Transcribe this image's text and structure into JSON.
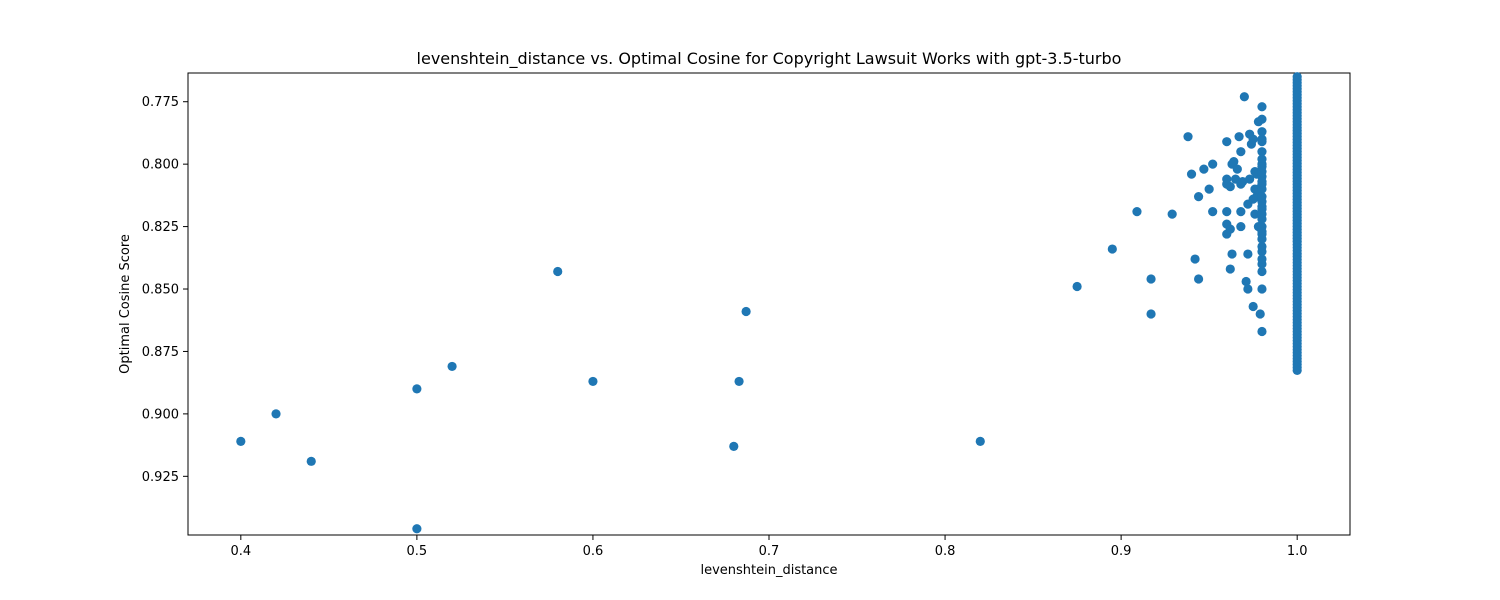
{
  "chart_data": {
    "type": "scatter",
    "title": "levenshtein_distance vs. Optimal Cosine for Copyright Lawsuit Works with gpt-3.5-turbo",
    "xlabel": "levenshtein_distance",
    "ylabel": "Optimal Cosine Score",
    "xlim": [
      0.37,
      1.03
    ],
    "ylim": [
      0.7635,
      0.9485
    ],
    "y_inverted": true,
    "xticks": [
      0.4,
      0.5,
      0.6,
      0.7,
      0.8,
      0.9,
      1.0
    ],
    "xtick_labels": [
      "0.4",
      "0.5",
      "0.6",
      "0.7",
      "0.8",
      "0.9",
      "1.0"
    ],
    "yticks": [
      0.775,
      0.8,
      0.825,
      0.85,
      0.875,
      0.9,
      0.925
    ],
    "ytick_labels": [
      "0.775",
      "0.800",
      "0.825",
      "0.850",
      "0.875",
      "0.900",
      "0.925"
    ],
    "grid": false,
    "marker_color": "#1f77b4",
    "series": [
      {
        "x": [
          0.4,
          0.42,
          0.44,
          0.5,
          0.5,
          0.52,
          0.58,
          0.6,
          0.68,
          0.683,
          0.687,
          0.82,
          0.875,
          0.895,
          0.909,
          0.917,
          0.917,
          0.929,
          0.938,
          0.94,
          0.942,
          0.944,
          0.944,
          0.947,
          0.95,
          0.952,
          0.952,
          0.96,
          0.96,
          0.96,
          0.96,
          0.96,
          0.96,
          0.962,
          0.962,
          0.962,
          0.963,
          0.963,
          0.964,
          0.965,
          0.966,
          0.967,
          0.968,
          0.968,
          0.968,
          0.968,
          0.969,
          0.97,
          0.971,
          0.972,
          0.972,
          0.972,
          0.973,
          0.973,
          0.974,
          0.975,
          0.975,
          0.975,
          0.976,
          0.976,
          0.976,
          0.977,
          0.977,
          0.978,
          0.978,
          0.978,
          0.979,
          0.98,
          0.98,
          0.98,
          0.98,
          0.98,
          0.98,
          0.98,
          0.98,
          0.98,
          0.98,
          0.98,
          0.98,
          0.98,
          0.98,
          0.98,
          0.98,
          0.98,
          0.98,
          0.98,
          0.98,
          0.98,
          0.98,
          0.98,
          0.98,
          0.98,
          0.98,
          0.98,
          0.98,
          0.98,
          0.98,
          0.98
        ],
        "y": [
          0.911,
          0.9,
          0.919,
          0.946,
          0.89,
          0.881,
          0.843,
          0.887,
          0.913,
          0.887,
          0.859,
          0.911,
          0.849,
          0.834,
          0.819,
          0.846,
          0.86,
          0.82,
          0.789,
          0.804,
          0.838,
          0.846,
          0.813,
          0.802,
          0.81,
          0.8,
          0.819,
          0.791,
          0.806,
          0.808,
          0.819,
          0.824,
          0.828,
          0.809,
          0.826,
          0.842,
          0.8,
          0.836,
          0.799,
          0.806,
          0.802,
          0.789,
          0.795,
          0.808,
          0.819,
          0.825,
          0.807,
          0.773,
          0.847,
          0.85,
          0.836,
          0.816,
          0.788,
          0.806,
          0.792,
          0.857,
          0.79,
          0.814,
          0.803,
          0.81,
          0.82,
          0.804,
          0.813,
          0.783,
          0.825,
          0.81,
          0.86,
          0.777,
          0.782,
          0.79,
          0.795,
          0.8,
          0.805,
          0.81,
          0.815,
          0.82,
          0.825,
          0.83,
          0.835,
          0.84,
          0.85,
          0.867,
          0.798,
          0.803,
          0.808,
          0.813,
          0.818,
          0.822,
          0.828,
          0.833,
          0.838,
          0.843,
          0.791,
          0.787,
          0.801,
          0.807,
          0.817,
          0.827
        ]
      },
      {
        "x": 1.0,
        "y_range": [
          0.765,
          0.883
        ],
        "y_step": 0.0012,
        "note_count_approx": 99
      }
    ]
  }
}
